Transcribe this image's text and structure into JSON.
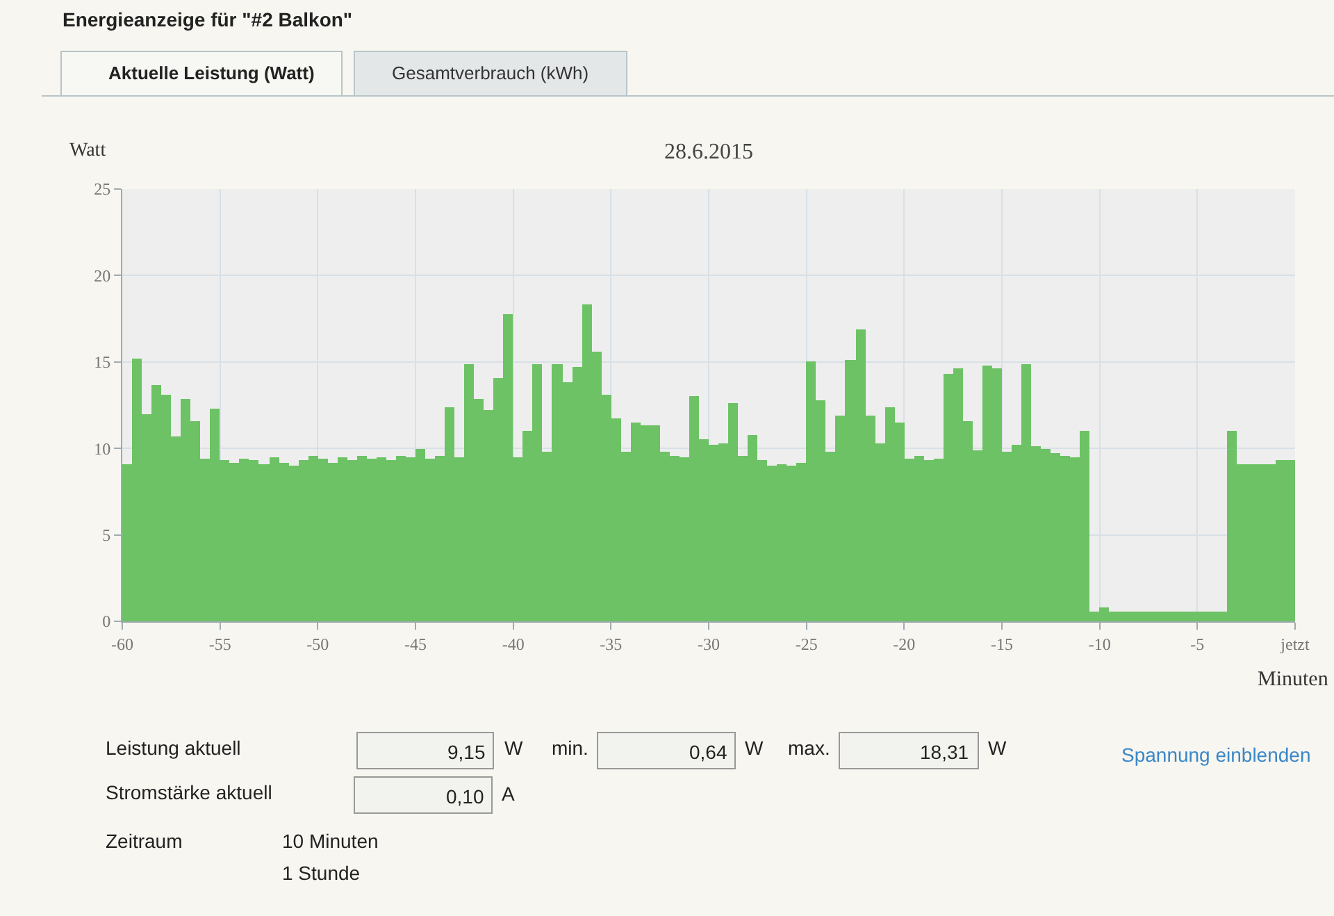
{
  "chart_data": {
    "type": "bar",
    "title": "28.6.2015",
    "xlabel": "Minuten",
    "ylabel": "Watt",
    "x": [
      -59.75,
      -59.25,
      -58.75,
      -58.25,
      -57.75,
      -57.25,
      -56.75,
      -56.25,
      -55.75,
      -55.25,
      -54.75,
      -54.25,
      -53.75,
      -53.25,
      -52.75,
      -52.25,
      -51.75,
      -51.25,
      -50.75,
      -50.25,
      -49.75,
      -49.25,
      -48.75,
      -48.25,
      -47.75,
      -47.25,
      -46.75,
      -46.25,
      -45.75,
      -45.25,
      -44.75,
      -44.25,
      -43.75,
      -43.25,
      -42.75,
      -42.25,
      -41.75,
      -41.25,
      -40.75,
      -40.25,
      -39.75,
      -39.25,
      -38.75,
      -38.25,
      -37.75,
      -37.25,
      -36.75,
      -36.25,
      -35.75,
      -35.25,
      -34.75,
      -34.25,
      -33.75,
      -33.25,
      -32.75,
      -32.25,
      -31.75,
      -31.25,
      -30.75,
      -30.25,
      -29.75,
      -29.25,
      -28.75,
      -28.25,
      -27.75,
      -27.25,
      -26.75,
      -26.25,
      -25.75,
      -25.25,
      -24.75,
      -24.25,
      -23.75,
      -23.25,
      -22.75,
      -22.25,
      -21.75,
      -21.25,
      -20.75,
      -20.25,
      -19.75,
      -19.25,
      -18.75,
      -18.25,
      -17.75,
      -17.25,
      -16.75,
      -16.25,
      -15.75,
      -15.25,
      -14.75,
      -14.25,
      -13.75,
      -13.25,
      -12.75,
      -12.25,
      -11.75,
      -11.25,
      -10.75,
      -10.25,
      -9.75,
      -9.25,
      -8.75,
      -8.25,
      -7.75,
      -7.25,
      -6.75,
      -6.25,
      -5.75,
      -5.25,
      -4.75,
      -4.25,
      -3.75,
      -3.25,
      -2.75,
      -2.25,
      -1.75,
      -1.25,
      -0.75,
      -0.25
    ],
    "series": [
      {
        "color": "#6cc264",
        "values": [
          9.1,
          15.2,
          12.0,
          13.7,
          13.1,
          10.7,
          12.9,
          11.6,
          9.4,
          12.3,
          9.3,
          9.2,
          9.4,
          9.3,
          9.1,
          9.5,
          9.2,
          9.0,
          9.3,
          9.6,
          9.4,
          9.2,
          9.5,
          9.3,
          9.6,
          9.4,
          9.5,
          9.3,
          9.6,
          9.5,
          10.0,
          9.4,
          9.6,
          12.4,
          9.5,
          14.9,
          12.9,
          12.2,
          14.1,
          17.8,
          9.5,
          11.0,
          14.9,
          9.8,
          14.9,
          13.8,
          14.7,
          18.3,
          15.6,
          13.1,
          11.7,
          9.8,
          11.5,
          11.3,
          11.3,
          9.8,
          9.6,
          9.5,
          13.0,
          10.5,
          10.2,
          10.3,
          12.6,
          9.6,
          10.8,
          9.3,
          9.0,
          9.1,
          9.0,
          9.2,
          15.0,
          12.8,
          9.8,
          11.9,
          15.1,
          16.9,
          11.9,
          10.3,
          12.4,
          11.5,
          9.4,
          9.6,
          9.3,
          9.4,
          14.3,
          14.6,
          11.6,
          9.9,
          14.8,
          14.6,
          9.8,
          10.2,
          14.9,
          10.1,
          10.0,
          9.7,
          9.6,
          9.5,
          11.0,
          0.6,
          0.8,
          0.6,
          0.6,
          0.6,
          0.6,
          0.6,
          0.6,
          0.6,
          0.6,
          0.6,
          0.6,
          0.6,
          0.6,
          11.0,
          9.1,
          9.1,
          9.1,
          9.1,
          9.3,
          9.3
        ]
      }
    ],
    "xlim": [
      -60,
      0
    ],
    "xticks": [
      -60,
      -55,
      -50,
      -45,
      -40,
      -35,
      -30,
      -25,
      -20,
      -15,
      -10,
      -5,
      {
        "value": 0,
        "label": "jetzt"
      }
    ],
    "ylim": [
      0,
      25
    ],
    "yticks": [
      0,
      5,
      10,
      15,
      20,
      25
    ],
    "grid": true,
    "annotations": [
      "Energieanzeige für \"#2 Balkon\"",
      "Aktuelle Leistung (Watt)",
      "Gesamtverbrauch (kWh)",
      "Leistung aktuell",
      "9,15",
      "W",
      "min.",
      "0,64",
      "W",
      "max.",
      "18,31",
      "W",
      "Spannung einblenden",
      "Stromstärke aktuell",
      "0,10",
      "A",
      "Zeitraum",
      "10 Minuten",
      "1 Stunde"
    ]
  }
}
